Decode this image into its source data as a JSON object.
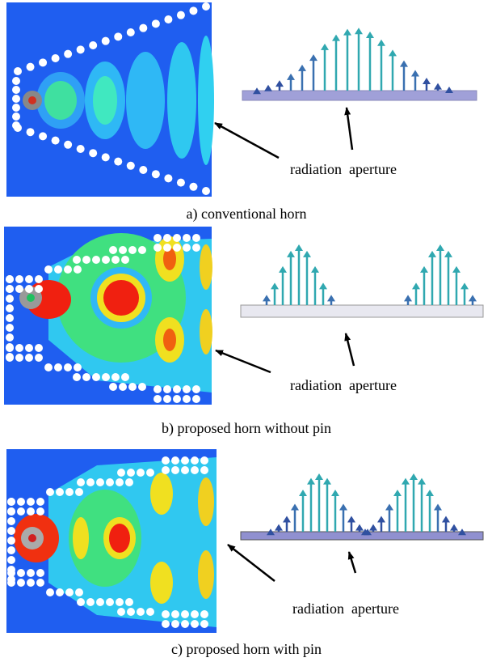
{
  "panels": [
    {
      "label": "radiation  aperture",
      "caption": "a) conventional horn"
    },
    {
      "label": "radiation  aperture",
      "caption": "b) proposed horn without pin"
    },
    {
      "label": "radiation  aperture",
      "caption": "c) proposed horn with pin"
    }
  ]
}
